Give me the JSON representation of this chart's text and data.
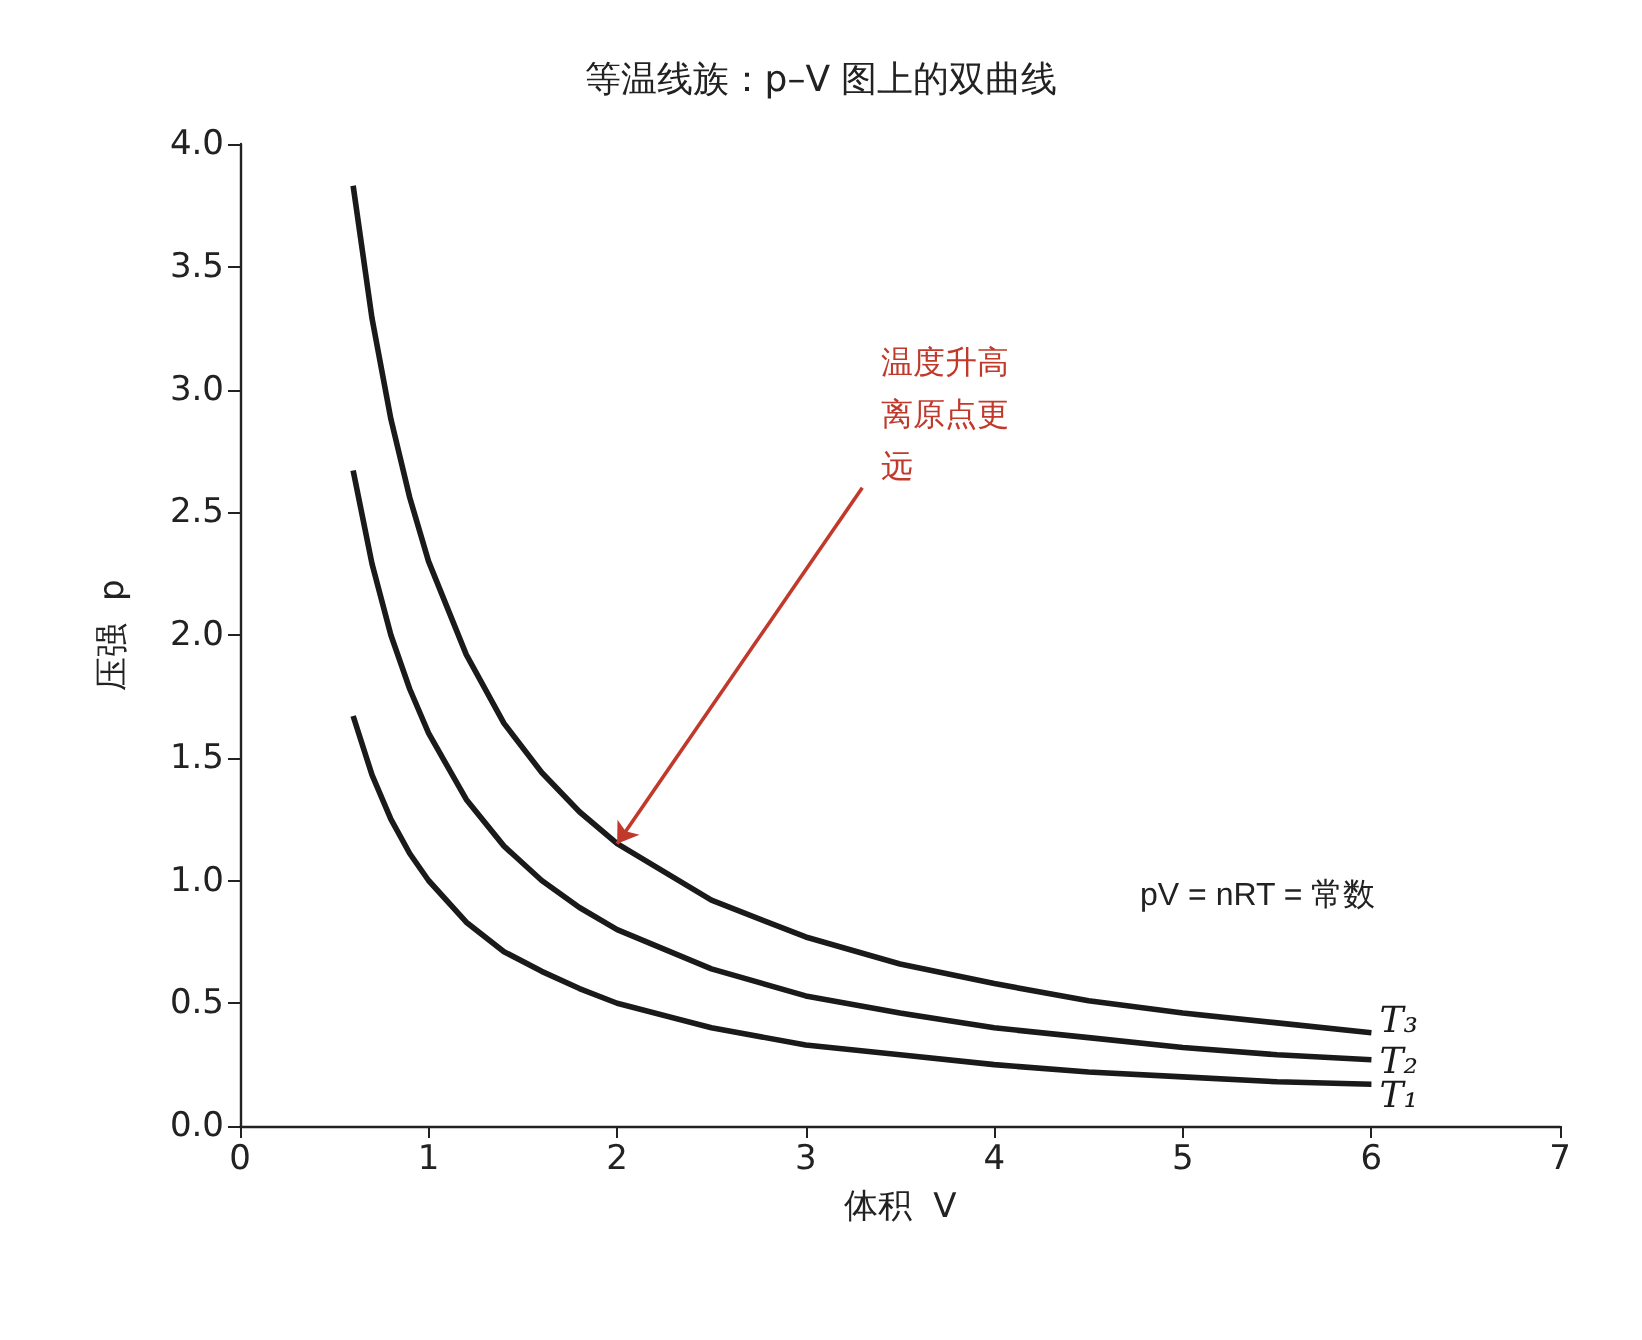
{
  "chart_data": {
    "type": "line",
    "title": "等温线族：p–V 图上的双曲线",
    "xlabel": "体积  V",
    "ylabel": "压强  p",
    "x": [
      0.6,
      0.7,
      0.8,
      0.9,
      1.0,
      1.2,
      1.4,
      1.6,
      1.8,
      2.0,
      2.5,
      3,
      3.5,
      4,
      4.5,
      5,
      5.5,
      6
    ],
    "series": [
      {
        "name": "T₁",
        "color": "#1a1a1a",
        "values": [
          1.67,
          1.43,
          1.25,
          1.11,
          1.0,
          0.83,
          0.71,
          0.63,
          0.56,
          0.5,
          0.4,
          0.33,
          0.29,
          0.25,
          0.22,
          0.2,
          0.18,
          0.17
        ]
      },
      {
        "name": "T₂",
        "color": "#1a1a1a",
        "values": [
          2.67,
          2.29,
          2.0,
          1.78,
          1.6,
          1.33,
          1.14,
          1.0,
          0.89,
          0.8,
          0.64,
          0.53,
          0.46,
          0.4,
          0.36,
          0.32,
          0.29,
          0.27
        ]
      },
      {
        "name": "T₃",
        "color": "#1a1a1a",
        "values": [
          3.83,
          3.29,
          2.88,
          2.56,
          2.3,
          1.92,
          1.64,
          1.44,
          1.28,
          1.15,
          0.92,
          0.77,
          0.66,
          0.58,
          0.51,
          0.46,
          0.42,
          0.38
        ]
      }
    ],
    "annotations": [
      {
        "text": "温度升高离原点更远",
        "x": 2,
        "y": 1.15
      },
      "pV = nRT = 常数"
    ],
    "xlim": [
      0,
      7
    ],
    "xticks": [
      0,
      1,
      2,
      3,
      4,
      5,
      6,
      7
    ],
    "ylim": [
      0,
      4
    ],
    "yticks": [
      {
        "value": 0,
        "label": "0.0"
      },
      0.5,
      {
        "value": 1,
        "label": "1.0"
      },
      1.5,
      {
        "value": 2,
        "label": "2.0"
      },
      2.5,
      {
        "value": 3,
        "label": "3.0"
      },
      3.5,
      {
        "value": 4,
        "label": "4.0"
      }
    ],
    "grid": false,
    "legend": false,
    "marker": "none",
    "line_style": "solid"
  }
}
